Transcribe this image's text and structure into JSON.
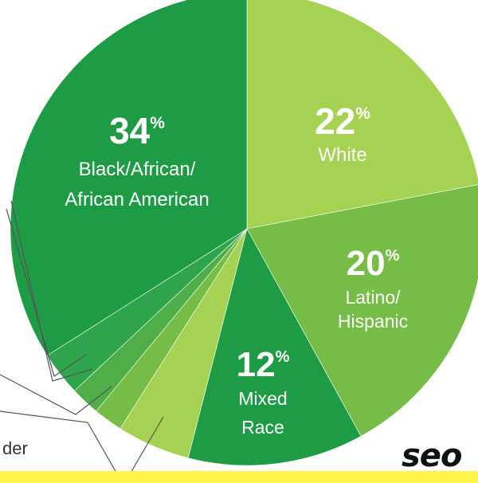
{
  "chart_data": {
    "type": "pie",
    "start_angle_deg": 0,
    "direction": "clockwise",
    "slices": [
      {
        "key": "white",
        "value": 22,
        "percent_label": "22",
        "label_lines": [
          "White"
        ],
        "color": "#a6d254"
      },
      {
        "key": "latino",
        "value": 20,
        "percent_label": "20",
        "label_lines": [
          "Latino/",
          "Hispanic"
        ],
        "color": "#75bd46"
      },
      {
        "key": "mixed",
        "value": 12,
        "percent_label": "12",
        "label_lines": [
          "Mixed",
          "Race"
        ],
        "color": "#1e9c45"
      },
      {
        "key": "small-4",
        "value": 5,
        "percent_label": "",
        "label_lines": [],
        "color": "#a6d254"
      },
      {
        "key": "small-3",
        "value": 2,
        "percent_label": "",
        "label_lines": [],
        "color": "#75bd46"
      },
      {
        "key": "small-2",
        "value": 2,
        "percent_label": "",
        "label_lines": [],
        "color": "#4fae48"
      },
      {
        "key": "small-1",
        "value": 3,
        "percent_label": "",
        "label_lines": [],
        "color": "#2ea44c"
      },
      {
        "key": "black",
        "value": 34,
        "percent_label": "34",
        "label_lines": [
          "Black/African/",
          "African American"
        ],
        "color": "#1e9c45"
      }
    ],
    "percent_sign": "%",
    "side_label_fragment": "der"
  },
  "colors": {
    "background": "#ffffff",
    "leader_line": "#555555",
    "highlight_bar": "#fff34a"
  },
  "brand_fragment": "seo"
}
